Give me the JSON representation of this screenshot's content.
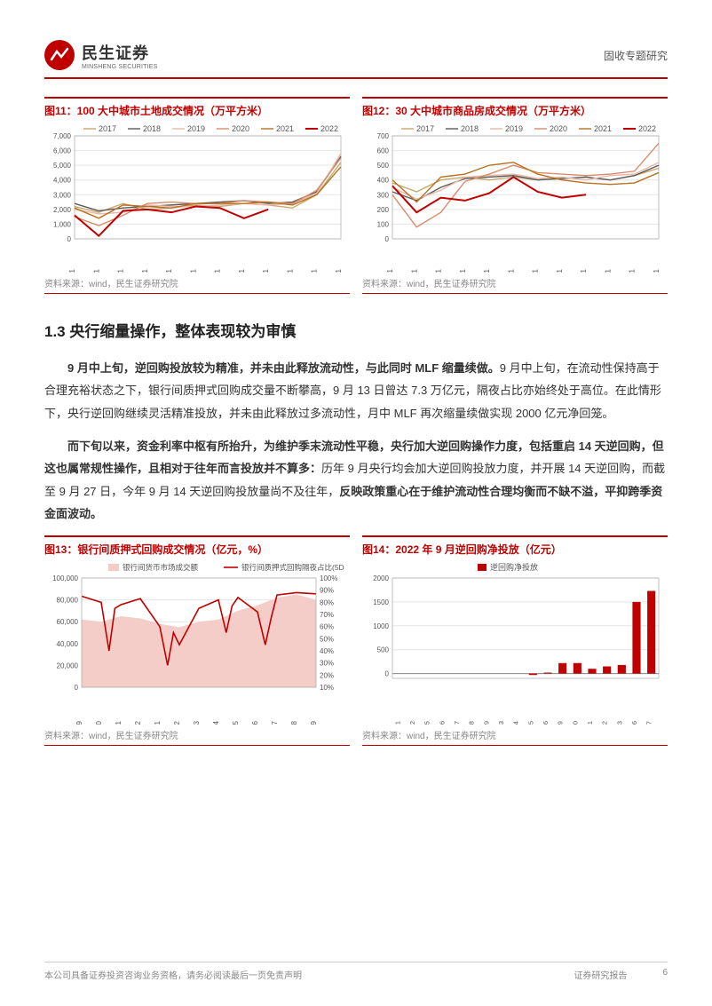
{
  "header": {
    "company_cn": "民生证券",
    "company_en": "MINSHENG SECURITIES",
    "doc_type": "固收专题研究"
  },
  "chart11": {
    "type": "line",
    "title": "图11：100 大中城市土地成交情况（万平方米）",
    "years": [
      "2017",
      "2018",
      "2019",
      "2020",
      "2021",
      "2022"
    ],
    "year_colors": [
      "#c6a96b",
      "#5a5a5a",
      "#e8b8a8",
      "#d98c6b",
      "#b8711f",
      "#c00000"
    ],
    "x_labels": [
      "01-01",
      "02-01",
      "03-01",
      "04-01",
      "05-01",
      "06-01",
      "07-01",
      "08-01",
      "09-01",
      "10-01",
      "11-01",
      "12-01"
    ],
    "ylim": [
      0,
      7000
    ],
    "ytick_step": 1000,
    "series": {
      "2017": [
        2200,
        1800,
        2400,
        2000,
        2100,
        2300,
        2200,
        2400,
        2300,
        2100,
        3000,
        5200
      ],
      "2018": [
        2400,
        1900,
        2100,
        2200,
        2300,
        2400,
        2500,
        2600,
        2400,
        2500,
        3200,
        5600
      ],
      "2019": [
        2000,
        1700,
        1800,
        2300,
        2200,
        2200,
        2300,
        2400,
        2300,
        2400,
        3100,
        5800
      ],
      "2020": [
        1500,
        900,
        1600,
        2400,
        2500,
        2400,
        2400,
        2600,
        2500,
        2400,
        3300,
        5500
      ],
      "2021": [
        2100,
        1400,
        2300,
        2200,
        2100,
        2400,
        2400,
        2400,
        2500,
        2300,
        3000,
        4900
      ],
      "2022": [
        1600,
        200,
        1900,
        2000,
        1800,
        2200,
        2100,
        1400,
        2000
      ]
    },
    "line_width": 1.4,
    "emphasis_width": 2.0,
    "grid_color": "#e5e5e5",
    "source": "资料来源：wind，民生证券研究院"
  },
  "chart12": {
    "type": "line",
    "title": "图12：30 大中城市商品房成交情况（万平方米）",
    "years": [
      "2017",
      "2018",
      "2019",
      "2020",
      "2021",
      "2022"
    ],
    "year_colors": [
      "#c6a96b",
      "#5a5a5a",
      "#e8b8a8",
      "#d98c6b",
      "#b8711f",
      "#c00000"
    ],
    "x_labels": [
      "01-01",
      "02-01",
      "03-01",
      "04-01",
      "05-01",
      "06-01",
      "07-01",
      "08-01",
      "09-01",
      "10-01",
      "11-01",
      "12-01"
    ],
    "ylim": [
      0,
      700
    ],
    "ytick_step": 100,
    "series": {
      "2017": [
        380,
        320,
        400,
        420,
        400,
        420,
        400,
        410,
        420,
        400,
        430,
        480
      ],
      "2018": [
        320,
        260,
        350,
        410,
        420,
        430,
        400,
        410,
        420,
        400,
        430,
        500
      ],
      "2019": [
        350,
        270,
        330,
        420,
        430,
        440,
        410,
        420,
        400,
        430,
        440,
        520
      ],
      "2020": [
        300,
        80,
        180,
        390,
        440,
        500,
        450,
        440,
        430,
        440,
        460,
        650
      ],
      "2021": [
        400,
        250,
        420,
        440,
        500,
        520,
        440,
        400,
        380,
        370,
        380,
        450
      ],
      "2022": [
        360,
        180,
        280,
        260,
        310,
        420,
        320,
        280,
        300
      ]
    },
    "line_width": 1.4,
    "emphasis_width": 2.0,
    "grid_color": "#e5e5e5",
    "source": "资料来源：wind，民生证券研究院"
  },
  "section_1_3": {
    "title": "1.3 央行缩量操作，整体表现较为审慎",
    "para1_bold": "9 月中上旬，逆回购投放较为精准，并未由此释放流动性，与此同时 MLF 缩量续做。",
    "para1_rest": "9 月中上旬，在流动性保持高于合理充裕状态之下，银行间质押式回购成交量不断攀高，9 月 13 日曾达 7.3 万亿元，隔夜占比亦始终处于高位。在此情形下，央行逆回购继续灵活精准投放，并未由此释放过多流动性，月中 MLF 再次缩量续做实现 2000 亿元净回笼。",
    "para2_bold1": "而下旬以来，资金利率中枢有所抬升，为维护季末流动性平稳，央行加大逆回购操作力度，包括重启 14 天逆回购，但这也属常规性操作，且相对于往年而言投放并不算多：",
    "para2_mid": "历年 9 月央行均会加大逆回购投放力度，并开展 14 天逆回购，而截至 9 月 27 日，今年 9 月 14 天逆回购投放量尚不及往年，",
    "para2_bold2": "反映政策重心在于维护流动性合理均衡而不缺不溢，平抑跨季资金面波动。"
  },
  "chart13": {
    "type": "combo",
    "title": "图13：银行间质押式回购成交情况（亿元，%）",
    "legend_area": "银行间货币市场成交额",
    "legend_line": "银行间质押式回购隔夜占比(5D MA，右)",
    "area_color": "#f4cdc8",
    "line_color": "#c00000",
    "x_labels": [
      "2021/09",
      "2021/10",
      "2021/11",
      "2021/12",
      "2022/01",
      "2022/02",
      "2022/03",
      "2022/04",
      "2022/05",
      "2022/06",
      "2022/07",
      "2022/08",
      "2022/09"
    ],
    "y_left": {
      "lim": [
        0,
        100000
      ],
      "step": 20000
    },
    "y_right": {
      "lim": [
        10,
        100
      ],
      "step": 10,
      "suffix": "%"
    },
    "area_values": [
      62000,
      60000,
      65000,
      63000,
      58000,
      55000,
      60000,
      62000,
      70000,
      75000,
      82000,
      85000,
      80000
    ],
    "line_values": [
      85,
      80,
      78,
      83,
      60,
      45,
      75,
      82,
      84,
      72,
      86,
      88,
      87
    ],
    "line_dips": [
      [
        1,
        40
      ],
      [
        4,
        28
      ],
      [
        7,
        55
      ],
      [
        9,
        45
      ]
    ],
    "grid_color": "#e5e5e5",
    "source": "资料来源：wind，民生证券研究院"
  },
  "chart14": {
    "type": "bar",
    "title": "图14：2022 年 9 月逆回购净投放（亿元）",
    "legend": "逆回购净投放",
    "bar_color": "#c00000",
    "x_labels": [
      "2022/09/01",
      "2022/09/02",
      "2022/09/05",
      "2022/09/06",
      "2022/09/07",
      "2022/09/08",
      "2022/09/09",
      "2022/09/13",
      "2022/09/14",
      "2022/09/15",
      "2022/09/16",
      "2022/09/19",
      "2022/09/20",
      "2022/09/21",
      "2022/09/22",
      "2022/09/23",
      "2022/09/26",
      "2022/09/27"
    ],
    "values": [
      0,
      0,
      0,
      0,
      0,
      0,
      0,
      0,
      0,
      -30,
      20,
      220,
      220,
      100,
      150,
      180,
      1500,
      1730
    ],
    "ylim": [
      -100,
      2000
    ],
    "ytick_step": 500,
    "grid_color": "#e5e5e5",
    "source": "资料来源：wind，民生证券研究院"
  },
  "footer": {
    "left": "本公司具备证券投资咨询业务资格，请务必阅读最后一页免责声明",
    "right_label": "证券研究报告",
    "page": "6"
  }
}
